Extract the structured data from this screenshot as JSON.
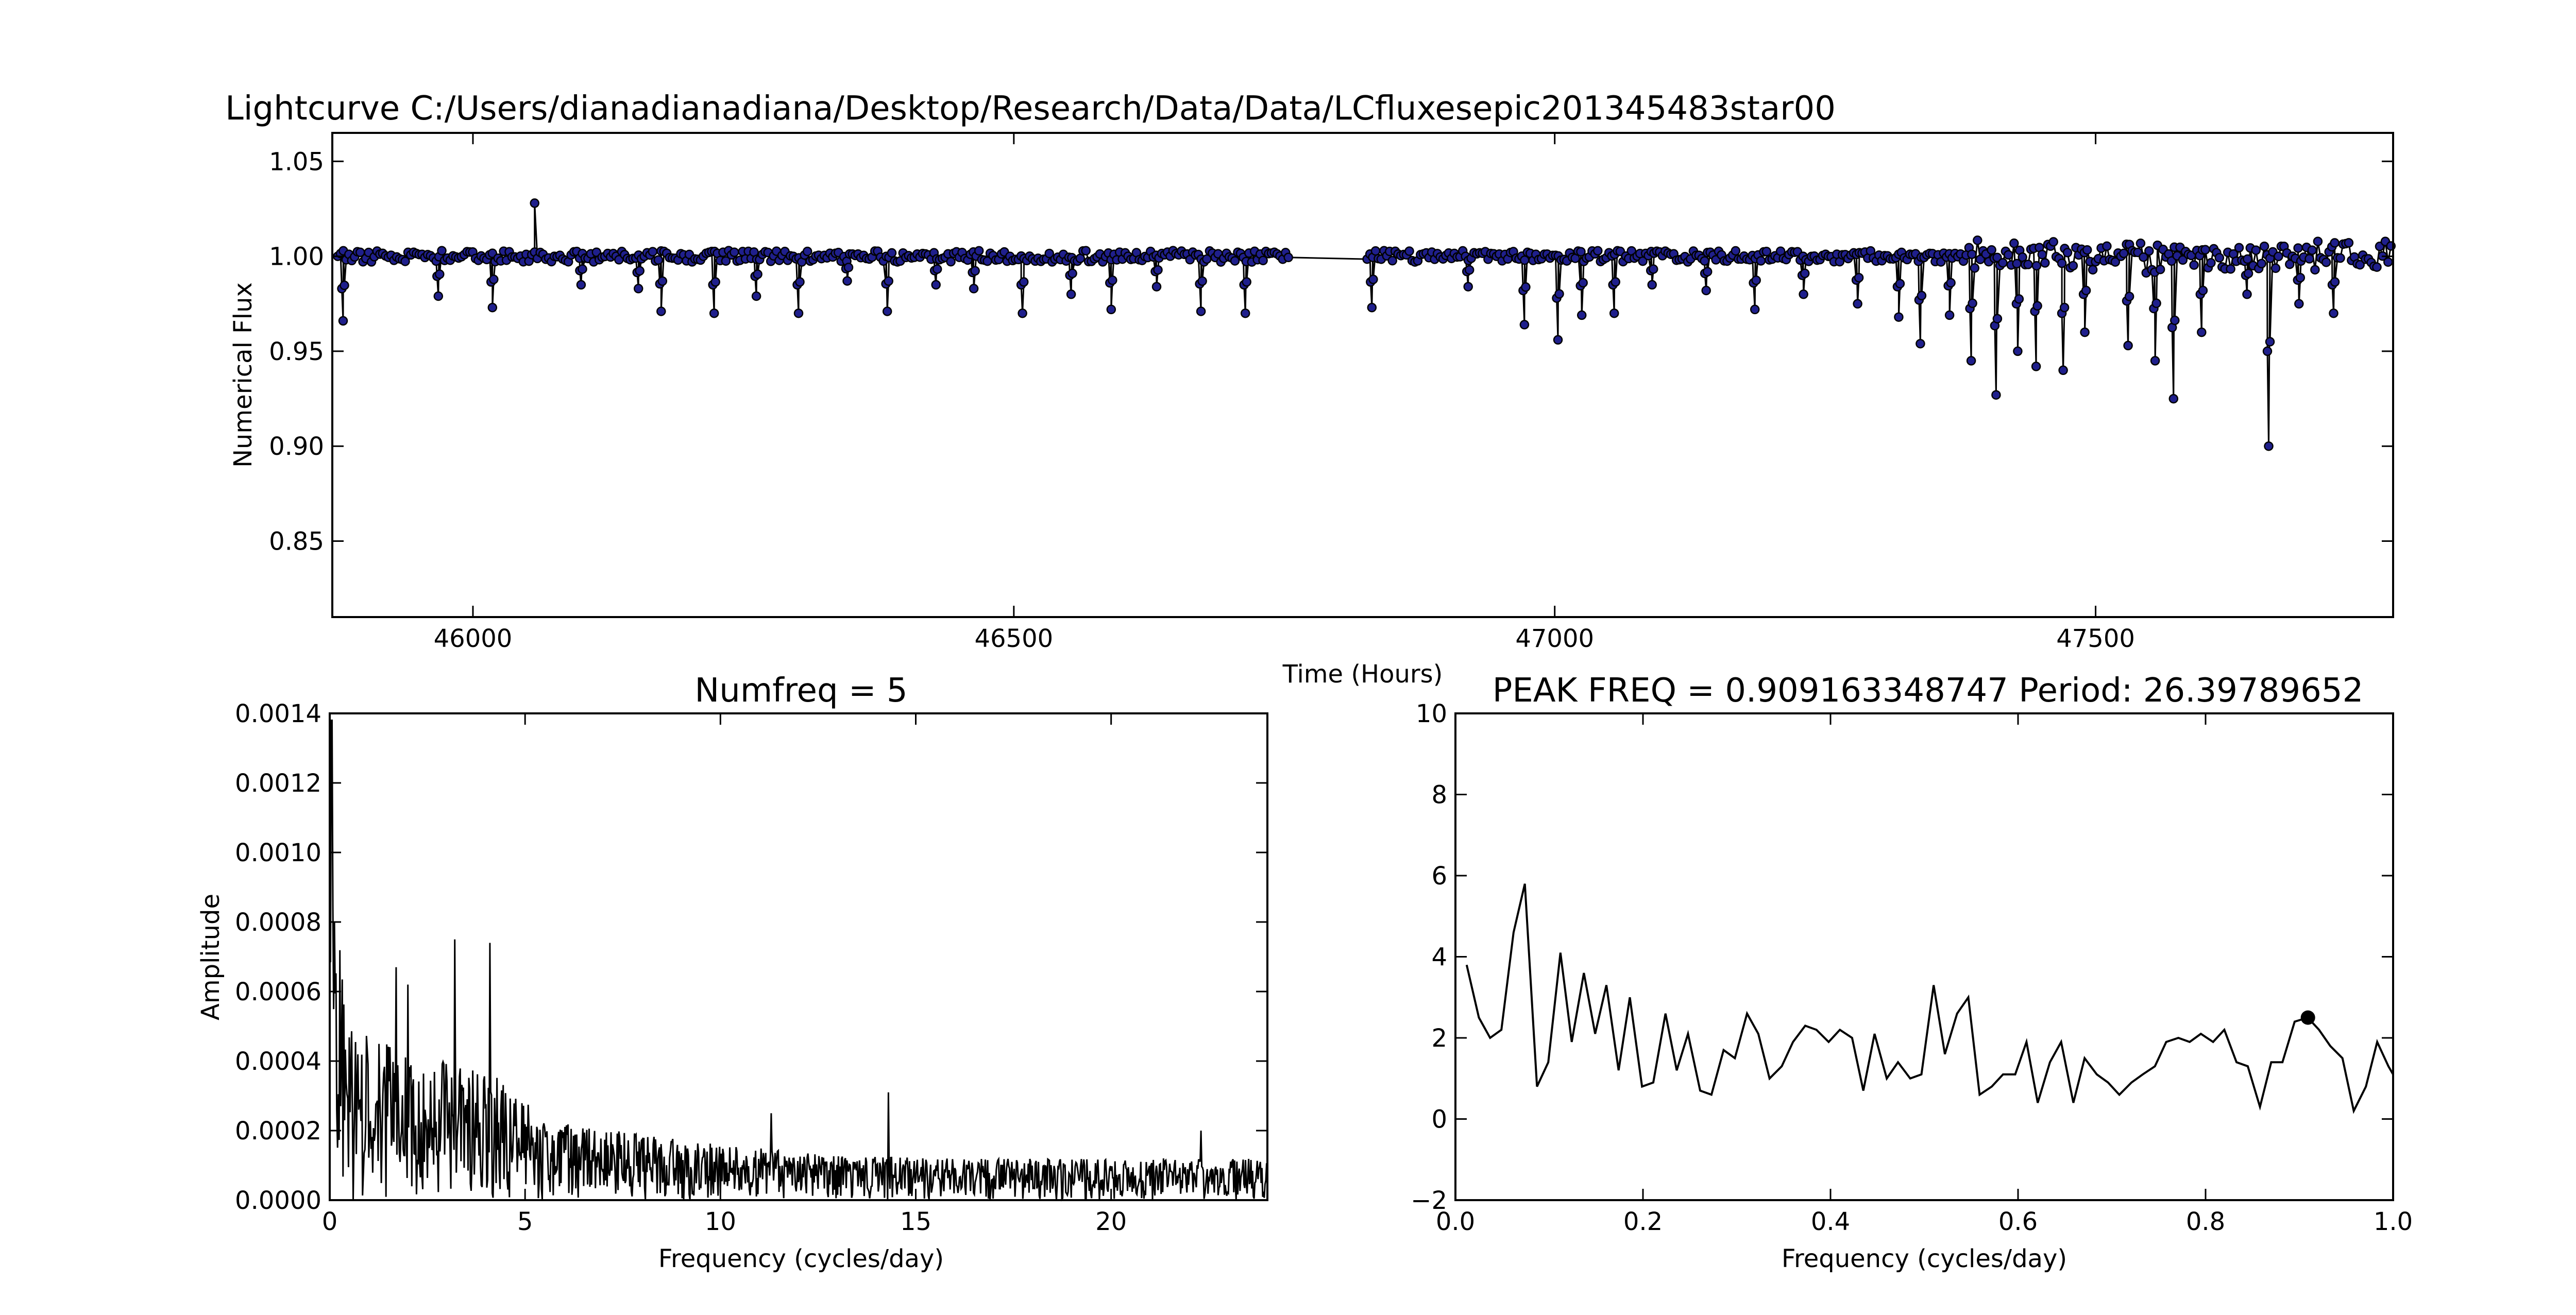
{
  "chart_data": [
    {
      "type": "scatter",
      "title": "Lightcurve C:/Users/dianadianadiana/Desktop/Research/Data/Data/LCfluxesepic201345483star00",
      "xlabel": "Time (Hours)",
      "ylabel": "Numerical Flux",
      "xlim": [
        45870,
        47775
      ],
      "ylim": [
        0.81,
        1.065
      ],
      "xticks": [
        46000,
        46500,
        47000,
        47500
      ],
      "xtick_labels": [
        "46000",
        "46500",
        "47000",
        "47500"
      ],
      "yticks": [
        0.85,
        0.9,
        0.95,
        1.0,
        1.05
      ],
      "ytick_labels": [
        "0.85",
        "0.90",
        "0.95",
        "1.00",
        "1.05"
      ],
      "grid": false,
      "marker_color": "#1f1f8c",
      "line_color": "#000000",
      "baseline": 1.0,
      "gap": [
        46755,
        46825
      ],
      "dips": [
        {
          "x": 45880,
          "y": 0.966
        },
        {
          "x": 45968,
          "y": 0.979
        },
        {
          "x": 46018,
          "y": 0.973
        },
        {
          "x": 46100,
          "y": 0.985
        },
        {
          "x": 46153,
          "y": 0.983
        },
        {
          "x": 46174,
          "y": 0.971
        },
        {
          "x": 46223,
          "y": 0.97
        },
        {
          "x": 46262,
          "y": 0.979
        },
        {
          "x": 46301,
          "y": 0.97
        },
        {
          "x": 46346,
          "y": 0.987
        },
        {
          "x": 46383,
          "y": 0.971
        },
        {
          "x": 46428,
          "y": 0.985
        },
        {
          "x": 46463,
          "y": 0.983
        },
        {
          "x": 46508,
          "y": 0.97
        },
        {
          "x": 46553,
          "y": 0.98
        },
        {
          "x": 46590,
          "y": 0.972
        },
        {
          "x": 46632,
          "y": 0.984
        },
        {
          "x": 46673,
          "y": 0.971
        },
        {
          "x": 46714,
          "y": 0.97
        },
        {
          "x": 46831,
          "y": 0.973
        },
        {
          "x": 46920,
          "y": 0.984
        },
        {
          "x": 46972,
          "y": 0.964
        },
        {
          "x": 47003,
          "y": 0.956
        },
        {
          "x": 47025,
          "y": 0.969
        },
        {
          "x": 47055,
          "y": 0.97
        },
        {
          "x": 47090,
          "y": 0.985
        },
        {
          "x": 47140,
          "y": 0.982
        },
        {
          "x": 47185,
          "y": 0.972
        },
        {
          "x": 47230,
          "y": 0.98
        },
        {
          "x": 47280,
          "y": 0.975
        },
        {
          "x": 47318,
          "y": 0.968
        },
        {
          "x": 47338,
          "y": 0.954
        },
        {
          "x": 47365,
          "y": 0.969
        },
        {
          "x": 47385,
          "y": 0.945
        },
        {
          "x": 47408,
          "y": 0.927
        },
        {
          "x": 47428,
          "y": 0.95
        },
        {
          "x": 47445,
          "y": 0.942
        },
        {
          "x": 47470,
          "y": 0.94
        },
        {
          "x": 47490,
          "y": 0.96
        },
        {
          "x": 47530,
          "y": 0.953
        },
        {
          "x": 47555,
          "y": 0.945
        },
        {
          "x": 47572,
          "y": 0.925
        },
        {
          "x": 47598,
          "y": 0.96
        },
        {
          "x": 47640,
          "y": 0.98
        },
        {
          "x": 47660,
          "y": 0.9
        },
        {
          "x": 47688,
          "y": 0.975
        },
        {
          "x": 47720,
          "y": 0.97
        }
      ],
      "spikes": [
        {
          "x": 46057,
          "y": 1.028
        }
      ]
    },
    {
      "type": "line",
      "title": "Numfreq = 5",
      "xlabel": "Frequency (cycles/day)",
      "ylabel": "Amplitude",
      "xlim": [
        0,
        24
      ],
      "ylim": [
        0,
        0.0014
      ],
      "xticks": [
        0,
        5,
        10,
        15,
        20
      ],
      "xtick_labels": [
        "0",
        "5",
        "10",
        "15",
        "20"
      ],
      "yticks": [
        0,
        0.0002,
        0.0004,
        0.0006,
        0.0008,
        0.001,
        0.0012,
        0.0014
      ],
      "ytick_labels": [
        "0.0000",
        "0.0002",
        "0.0004",
        "0.0006",
        "0.0008",
        "0.0010",
        "0.0012",
        "0.0014"
      ],
      "grid": false,
      "envelope": [
        {
          "x": 0.0,
          "y": 0.00138
        },
        {
          "x": 0.2,
          "y": 0.0008
        },
        {
          "x": 0.5,
          "y": 0.00055
        },
        {
          "x": 1,
          "y": 0.00048
        },
        {
          "x": 2,
          "y": 0.00042
        },
        {
          "x": 3,
          "y": 0.0004
        },
        {
          "x": 4,
          "y": 0.00038
        },
        {
          "x": 5,
          "y": 0.00028
        },
        {
          "x": 6,
          "y": 0.00022
        },
        {
          "x": 8,
          "y": 0.00019
        },
        {
          "x": 10,
          "y": 0.00016
        },
        {
          "x": 13,
          "y": 0.00013
        },
        {
          "x": 16,
          "y": 0.00012
        },
        {
          "x": 20,
          "y": 0.00012
        },
        {
          "x": 24,
          "y": 0.00012
        }
      ],
      "peaks": [
        {
          "x": 0.05,
          "y": 0.00138
        },
        {
          "x": 3.2,
          "y": 0.00075
        },
        {
          "x": 4.1,
          "y": 0.00074
        },
        {
          "x": 2.0,
          "y": 0.00062
        },
        {
          "x": 1.7,
          "y": 0.00067
        },
        {
          "x": 14.3,
          "y": 0.00031
        },
        {
          "x": 11.3,
          "y": 0.00025
        },
        {
          "x": 22.3,
          "y": 0.0002
        }
      ]
    },
    {
      "type": "line",
      "title": "PEAK FREQ = 0.909163348747 Period: 26.39789652",
      "xlabel": "Frequency (cycles/day)",
      "ylabel": "",
      "xlim": [
        0,
        1
      ],
      "ylim": [
        -2,
        10
      ],
      "xticks": [
        0,
        0.2,
        0.4,
        0.6,
        0.8,
        1.0
      ],
      "xtick_labels": [
        "0.0",
        "0.2",
        "0.4",
        "0.6",
        "0.8",
        "1.0"
      ],
      "yticks": [
        -2,
        0,
        2,
        4,
        6,
        8,
        10
      ],
      "ytick_labels": [
        "−2",
        "0",
        "2",
        "4",
        "6",
        "8",
        "10"
      ],
      "grid": false,
      "x": [
        0.012,
        0.025,
        0.037,
        0.049,
        0.062,
        0.074,
        0.087,
        0.099,
        0.112,
        0.124,
        0.137,
        0.149,
        0.161,
        0.174,
        0.186,
        0.199,
        0.211,
        0.224,
        0.236,
        0.248,
        0.261,
        0.273,
        0.286,
        0.298,
        0.311,
        0.323,
        0.335,
        0.348,
        0.36,
        0.373,
        0.385,
        0.398,
        0.41,
        0.423,
        0.435,
        0.447,
        0.46,
        0.472,
        0.485,
        0.497,
        0.51,
        0.522,
        0.535,
        0.547,
        0.559,
        0.572,
        0.584,
        0.597,
        0.609,
        0.621,
        0.634,
        0.646,
        0.659,
        0.671,
        0.684,
        0.696,
        0.708,
        0.721,
        0.733,
        0.746,
        0.758,
        0.771,
        0.783,
        0.795,
        0.808,
        0.82,
        0.833,
        0.845,
        0.858,
        0.87,
        0.882,
        0.895,
        0.909,
        0.921,
        0.933,
        0.946,
        0.958,
        0.971,
        0.983,
        0.995,
        1.0
      ],
      "y": [
        3.8,
        2.5,
        2.0,
        2.2,
        4.6,
        5.8,
        0.8,
        1.4,
        4.1,
        1.9,
        3.6,
        2.1,
        3.3,
        1.2,
        3.0,
        0.8,
        0.9,
        2.6,
        1.2,
        2.1,
        0.7,
        0.6,
        1.7,
        1.5,
        2.6,
        2.1,
        1.0,
        1.3,
        1.9,
        2.3,
        2.2,
        1.9,
        2.2,
        2.0,
        0.7,
        2.1,
        1.0,
        1.4,
        1.0,
        1.1,
        3.3,
        1.6,
        2.6,
        3.0,
        0.6,
        0.8,
        1.1,
        1.1,
        1.9,
        0.4,
        1.4,
        1.9,
        0.4,
        1.5,
        1.1,
        0.9,
        0.6,
        0.9,
        1.1,
        1.3,
        1.9,
        2.0,
        1.9,
        2.1,
        1.9,
        2.2,
        1.4,
        1.3,
        0.3,
        1.4,
        1.4,
        2.4,
        2.5,
        2.2,
        1.8,
        1.5,
        0.2,
        0.8,
        1.9,
        1.3,
        1.1
      ],
      "peak": {
        "x": 0.909163348747,
        "y": 2.5
      }
    }
  ]
}
